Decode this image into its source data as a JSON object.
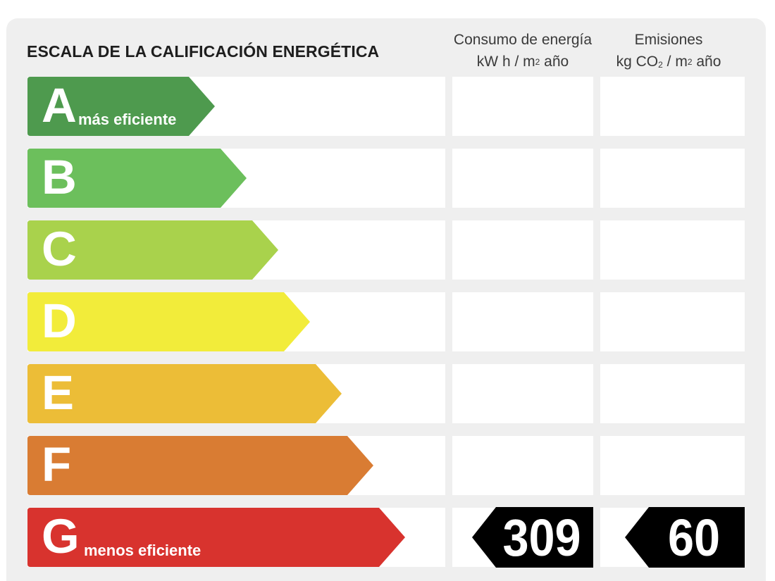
{
  "title": "ESCALA DE LA CALIFICACIÓN ENERGÉTICA",
  "columns": {
    "consumo": {
      "line1": "Consumo de energía",
      "unit_a": "kW h  / m",
      "unit_sup": "2",
      "unit_b": " año"
    },
    "emisiones": {
      "line1": "Emisiones",
      "unit_a": "kg CO",
      "unit_sub": "2",
      "unit_b": "  / m",
      "unit_sup": "2",
      "unit_c": " año"
    }
  },
  "ratings": [
    {
      "letter": "A",
      "label": "más eficiente",
      "color": "#4e9a4e"
    },
    {
      "letter": "B",
      "label": "",
      "color": "#6cbf5c"
    },
    {
      "letter": "C",
      "label": "",
      "color": "#a9d24c"
    },
    {
      "letter": "D",
      "label": "",
      "color": "#f2ec3a"
    },
    {
      "letter": "E",
      "label": "",
      "color": "#ecbd37"
    },
    {
      "letter": "F",
      "label": "",
      "color": "#d97c33"
    },
    {
      "letter": "G",
      "label": "menos eficiente",
      "color": "#d8332e"
    }
  ],
  "current": {
    "rating": "G",
    "consumo_value": "309",
    "emisiones_value": "60",
    "badge_color": "#000000"
  }
}
